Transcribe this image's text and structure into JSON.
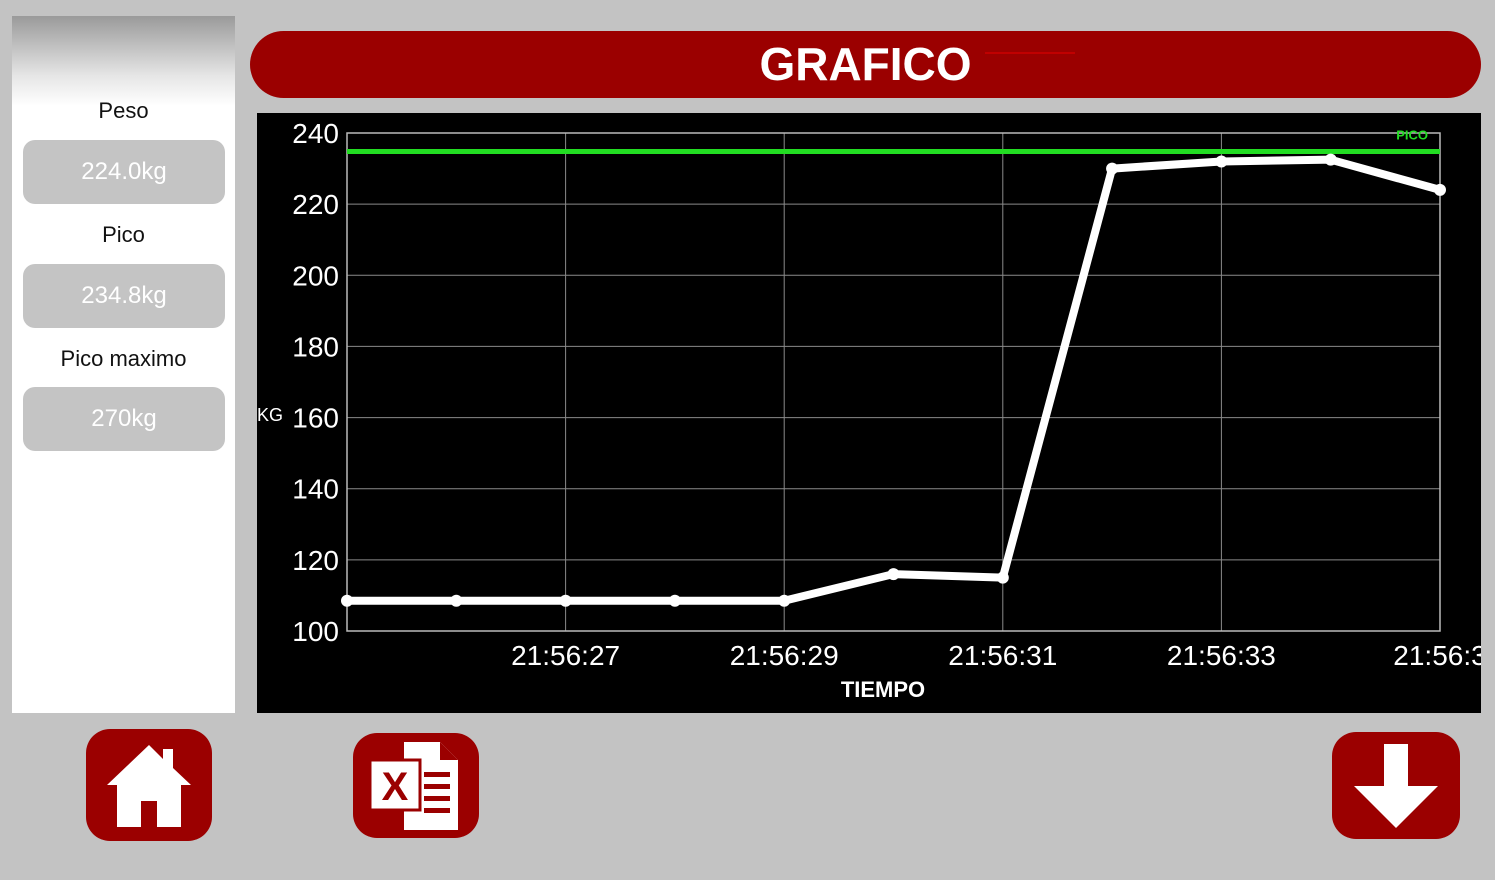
{
  "sidebar": {
    "peso_label": "Peso",
    "peso_value": "224.0kg",
    "pico_label": "Pico",
    "pico_value": "234.8kg",
    "pico_max_label": "Pico maximo",
    "pico_max_value": "270kg"
  },
  "header": {
    "title": "GRAFICO"
  },
  "chart_data": {
    "type": "line",
    "ylabel": "KG",
    "xlabel": "TIEMPO",
    "ylim": [
      100,
      240
    ],
    "yticks": [
      100,
      120,
      140,
      160,
      180,
      200,
      220,
      240
    ],
    "xlim": [
      0,
      10
    ],
    "xticks": [
      {
        "x": 2,
        "label": "21:56:27"
      },
      {
        "x": 4,
        "label": "21:56:29"
      },
      {
        "x": 6,
        "label": "21:56:31"
      },
      {
        "x": 8,
        "label": "21:56:33"
      },
      {
        "x": 10,
        "label": "21:56:3"
      }
    ],
    "series": [
      {
        "x": [
          0,
          1,
          2,
          3,
          4,
          5,
          6,
          7,
          8,
          9,
          10
        ],
        "values": [
          108.5,
          108.5,
          108.5,
          108.5,
          108.5,
          116,
          115,
          230,
          232,
          232.5,
          224
        ],
        "color": "#ffffff"
      }
    ],
    "peak_line": {
      "value": 234.8,
      "label": "PICO",
      "color": "#22dd22"
    },
    "grid": true,
    "background": "#000000"
  },
  "buttons": {
    "home": "home-icon",
    "excel": "excel-icon",
    "download": "arrow-down-icon"
  },
  "colors": {
    "accent": "#9b0000",
    "background": "#c3c3c3"
  }
}
